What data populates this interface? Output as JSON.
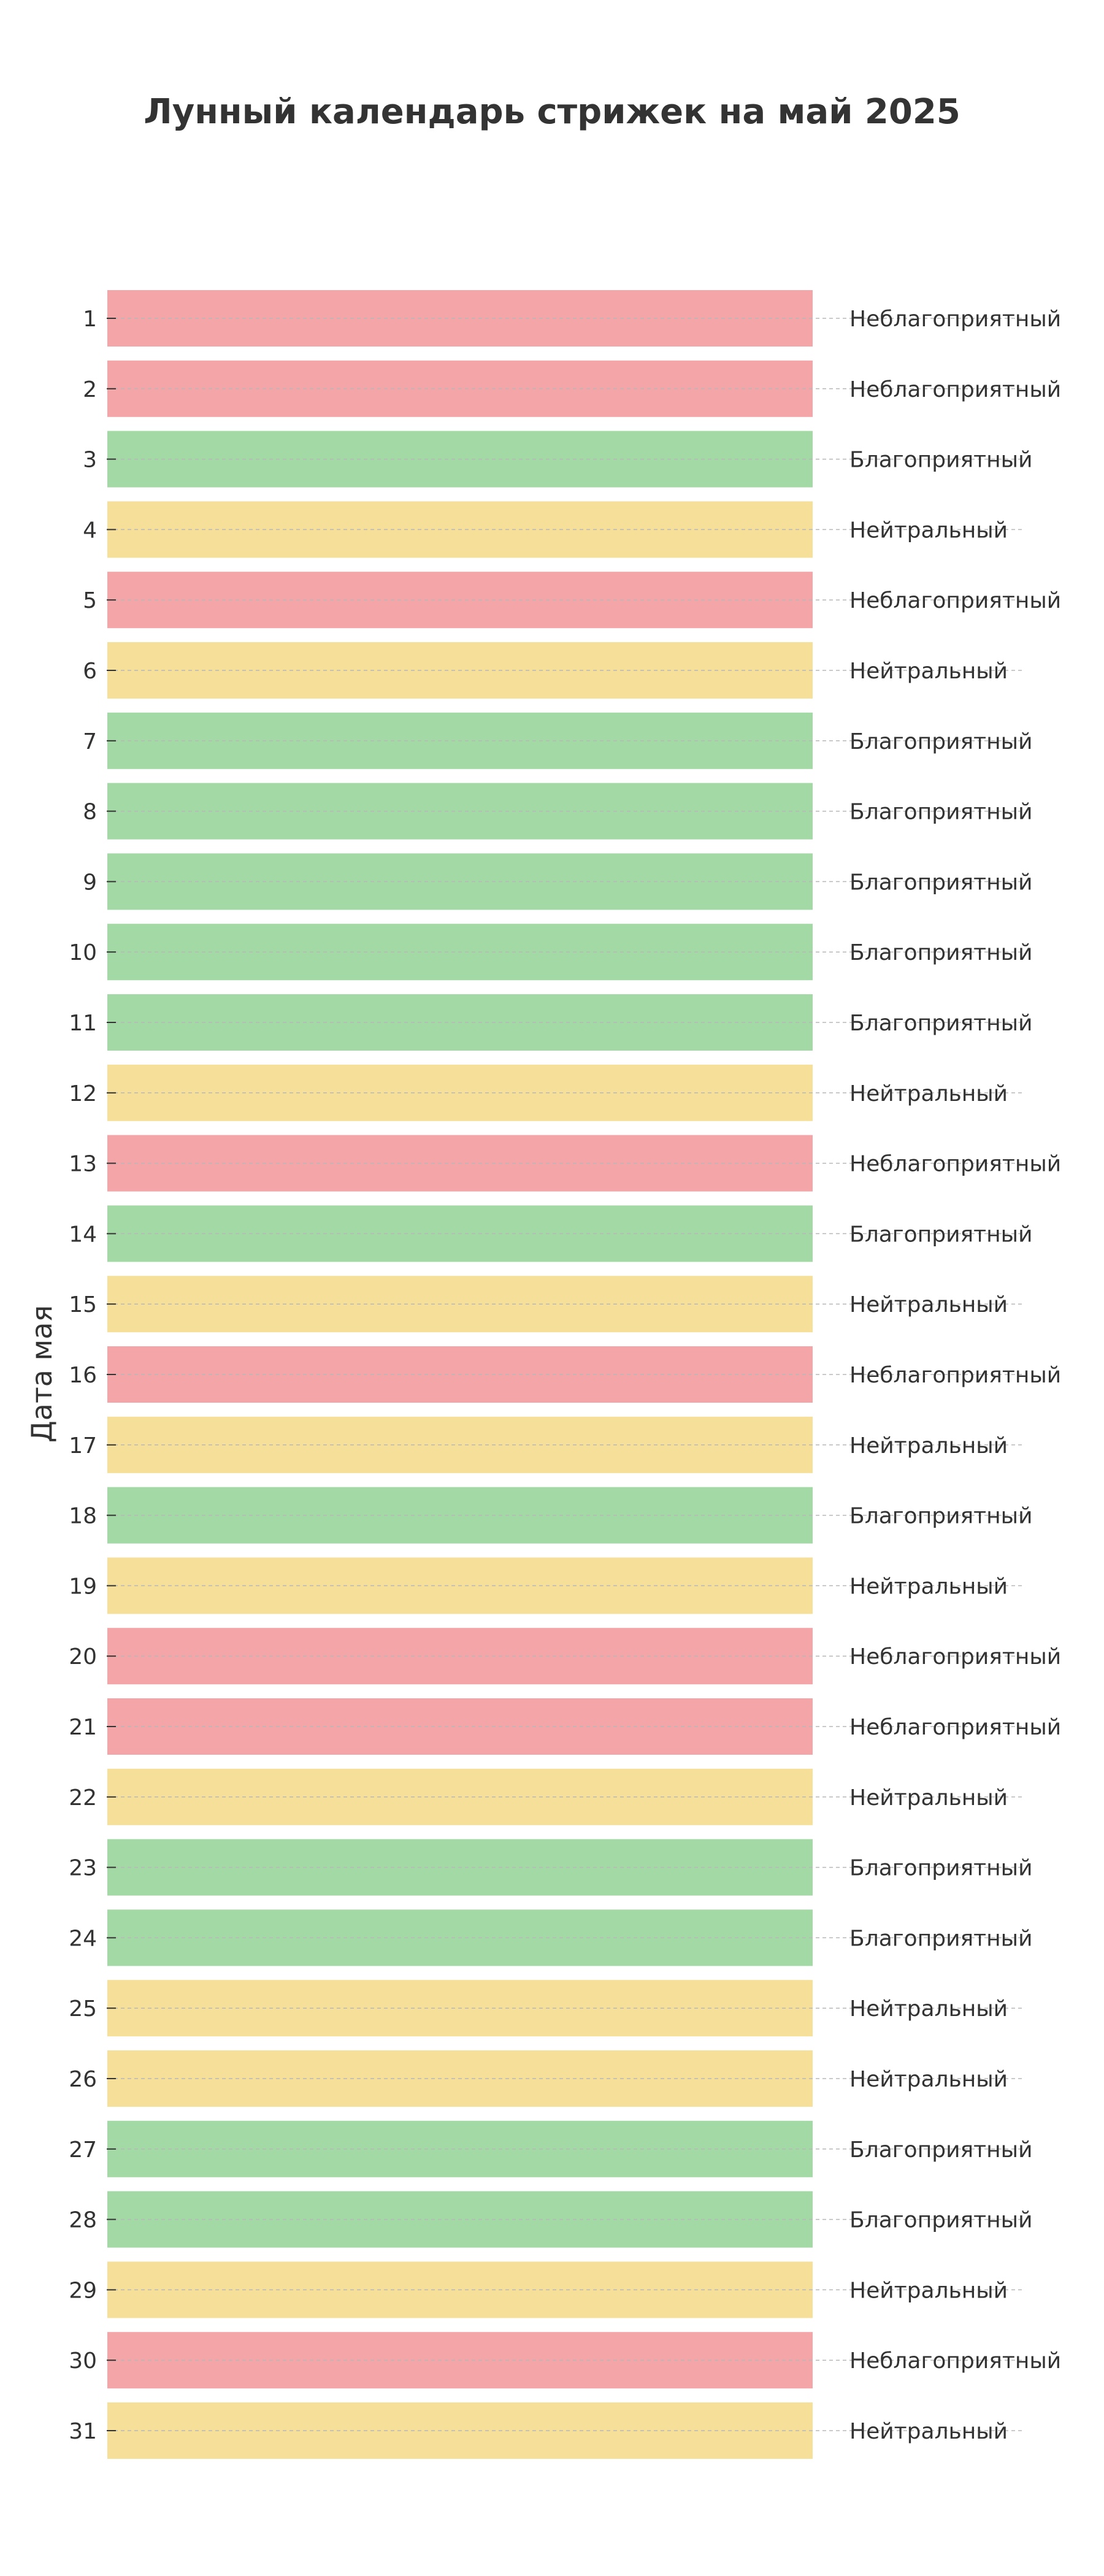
{
  "chart_data": {
    "type": "bar",
    "orientation": "horizontal",
    "title": "Лунный календарь стрижек на май 2025",
    "ylabel": "Дата мая",
    "xlabel": "",
    "grid": true,
    "legend": "none",
    "status_colors": {
      "Благоприятный": "#a3d9a5",
      "Неблагоприятный": "#f4a5a8",
      "Нейтральный": "#f5df99"
    },
    "days": [
      {
        "date": "1",
        "status": "Неблагоприятный"
      },
      {
        "date": "2",
        "status": "Неблагоприятный"
      },
      {
        "date": "3",
        "status": "Благоприятный"
      },
      {
        "date": "4",
        "status": "Нейтральный"
      },
      {
        "date": "5",
        "status": "Неблагоприятный"
      },
      {
        "date": "6",
        "status": "Нейтральный"
      },
      {
        "date": "7",
        "status": "Благоприятный"
      },
      {
        "date": "8",
        "status": "Благоприятный"
      },
      {
        "date": "9",
        "status": "Благоприятный"
      },
      {
        "date": "10",
        "status": "Благоприятный"
      },
      {
        "date": "11",
        "status": "Благоприятный"
      },
      {
        "date": "12",
        "status": "Нейтральный"
      },
      {
        "date": "13",
        "status": "Неблагоприятный"
      },
      {
        "date": "14",
        "status": "Благоприятный"
      },
      {
        "date": "15",
        "status": "Нейтральный"
      },
      {
        "date": "16",
        "status": "Неблагоприятный"
      },
      {
        "date": "17",
        "status": "Нейтральный"
      },
      {
        "date": "18",
        "status": "Благоприятный"
      },
      {
        "date": "19",
        "status": "Нейтральный"
      },
      {
        "date": "20",
        "status": "Неблагоприятный"
      },
      {
        "date": "21",
        "status": "Неблагоприятный"
      },
      {
        "date": "22",
        "status": "Нейтральный"
      },
      {
        "date": "23",
        "status": "Благоприятный"
      },
      {
        "date": "24",
        "status": "Благоприятный"
      },
      {
        "date": "25",
        "status": "Нейтральный"
      },
      {
        "date": "26",
        "status": "Нейтральный"
      },
      {
        "date": "27",
        "status": "Благоприятный"
      },
      {
        "date": "28",
        "status": "Благоприятный"
      },
      {
        "date": "29",
        "status": "Нейтральный"
      },
      {
        "date": "30",
        "status": "Неблагоприятный"
      },
      {
        "date": "31",
        "status": "Нейтральный"
      }
    ]
  }
}
